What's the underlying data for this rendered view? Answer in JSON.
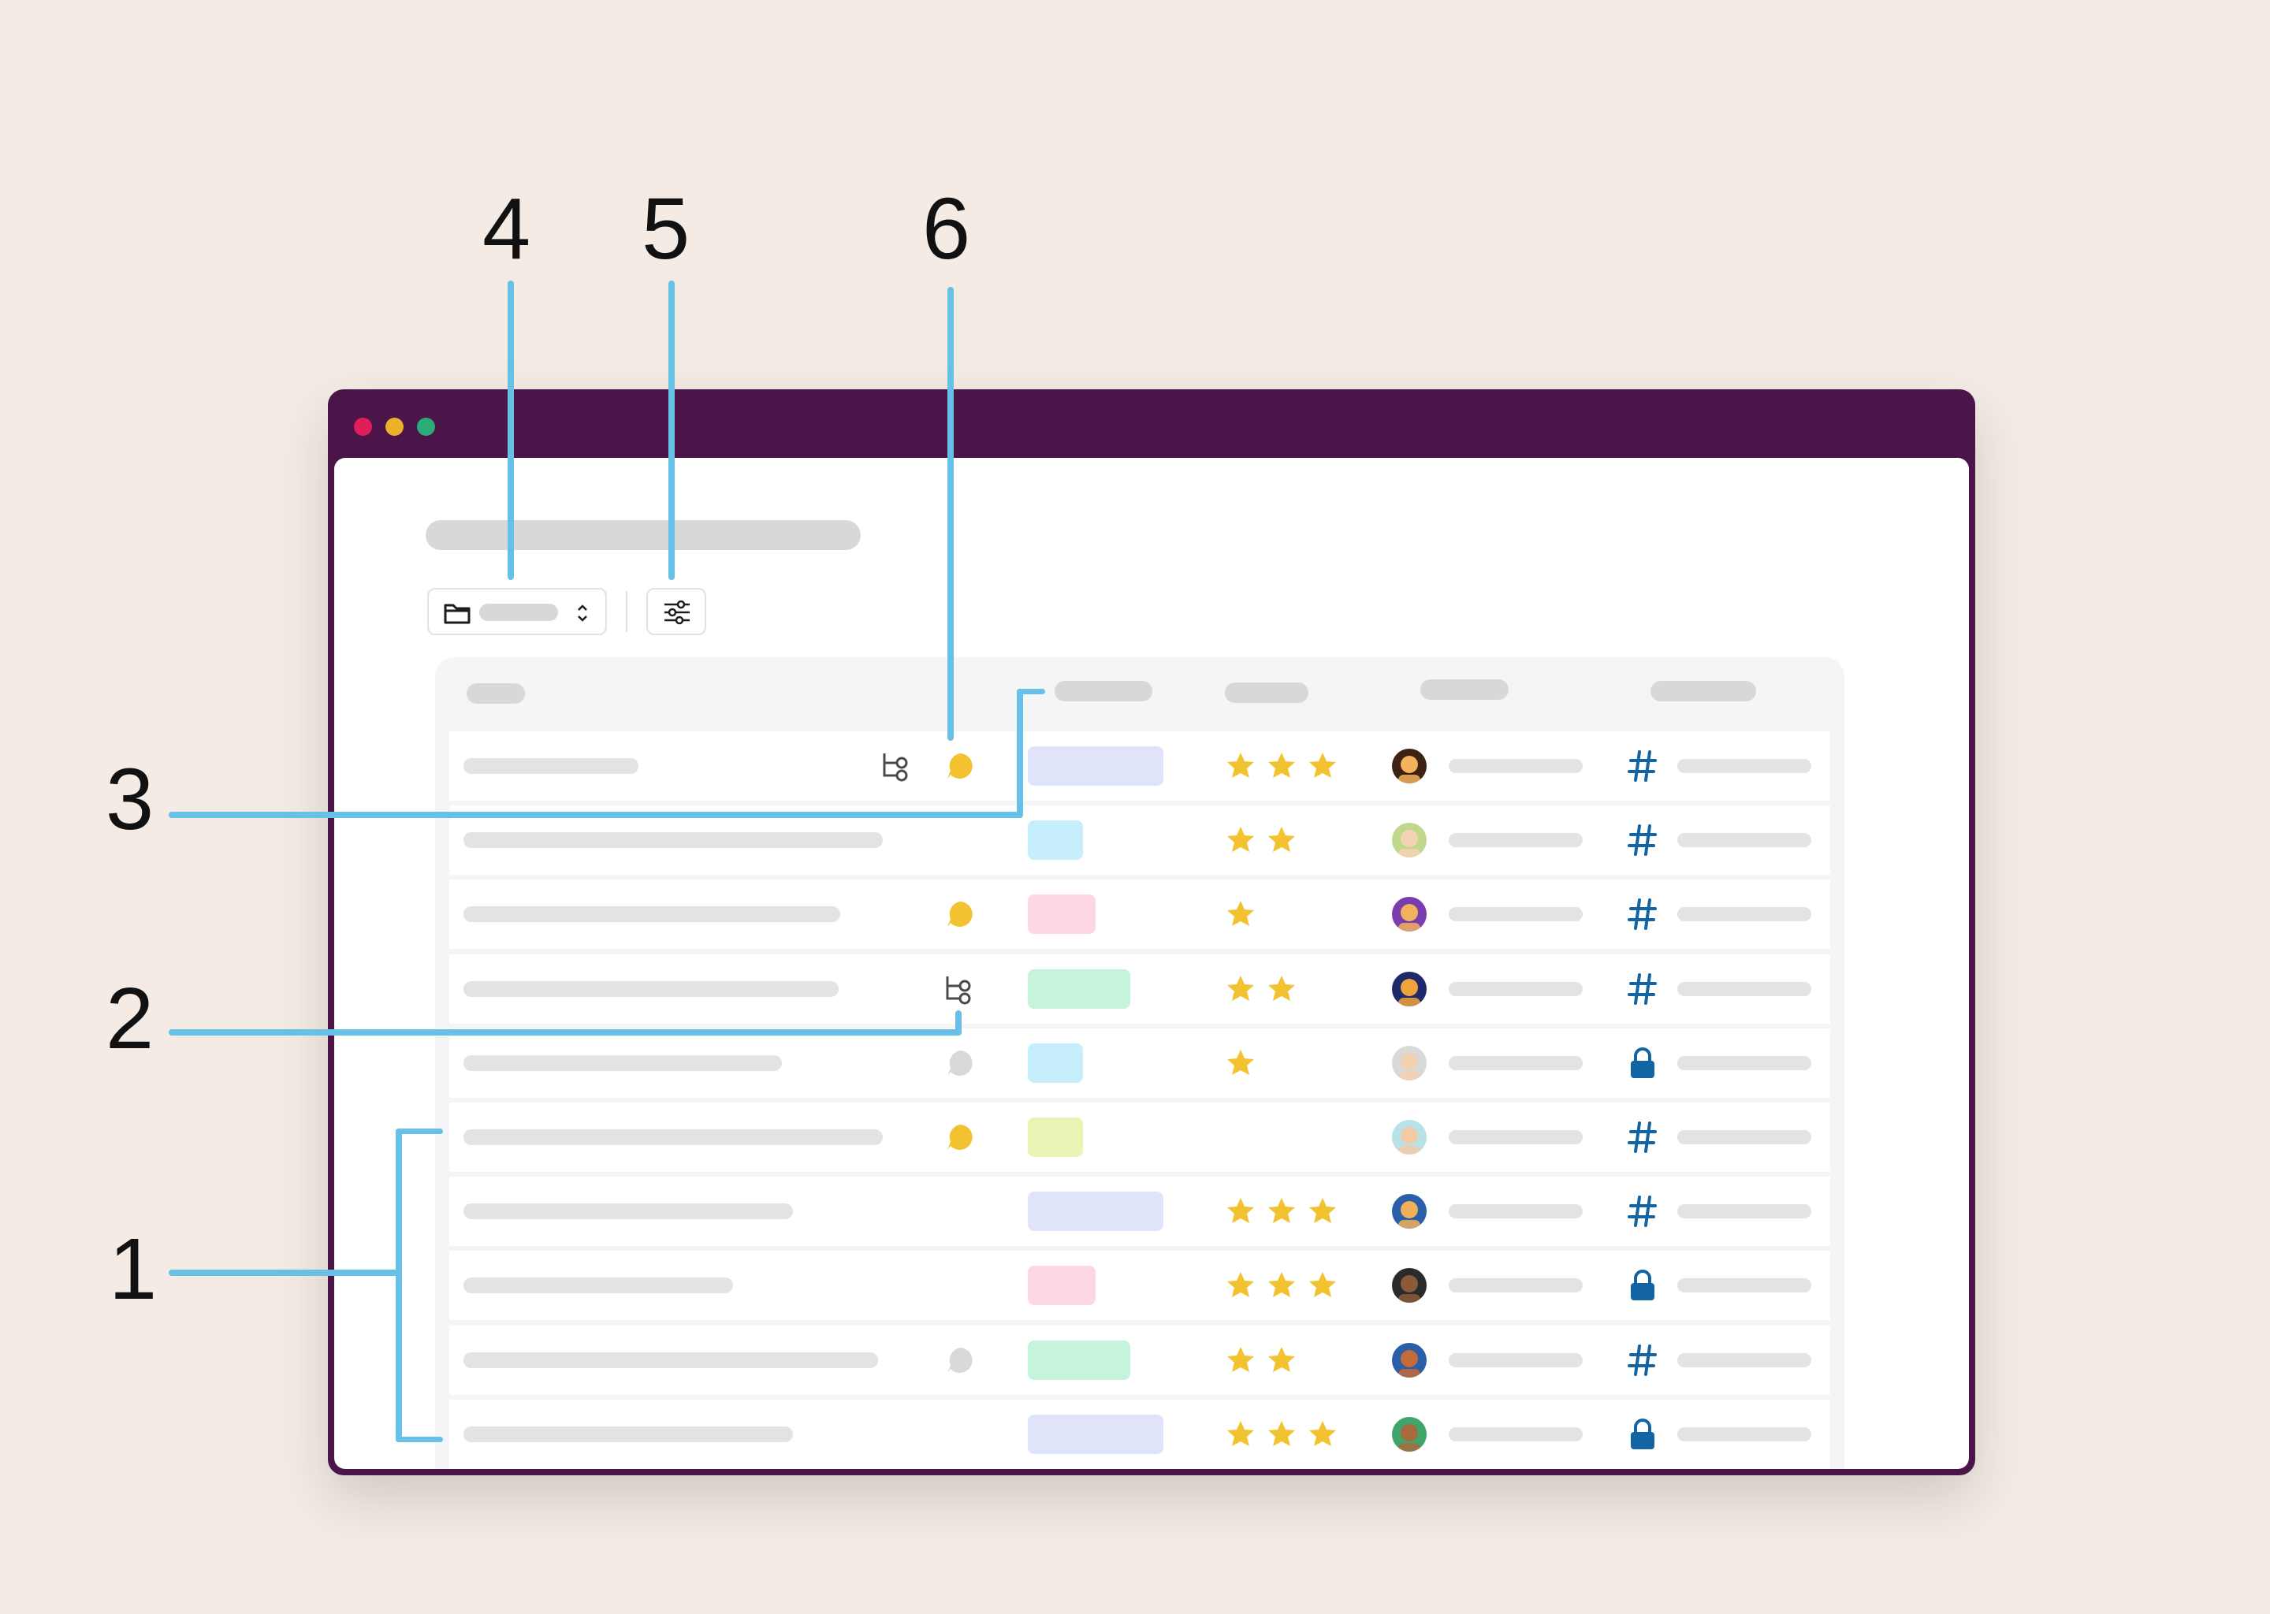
{
  "callouts": [
    {
      "num": "1"
    },
    {
      "num": "2"
    },
    {
      "num": "3"
    },
    {
      "num": "4"
    },
    {
      "num": "5"
    },
    {
      "num": "6"
    }
  ],
  "colors": {
    "background": "#f4ece4",
    "window_frame": "#4b154a",
    "leader": "#67c1e6",
    "star": "#f2c230",
    "hash": "#1264a3",
    "comment_active": "#f2c230",
    "comment_inactive": "#d9d9d9",
    "traffic_red": "#e01e5a",
    "traffic_yellow": "#ecb22e",
    "traffic_green": "#2bac76"
  },
  "toolbar": {
    "folder_icon": "folder-icon",
    "selector_icon": "chevron-up-down-icon",
    "filter_icon": "sliders-icon"
  },
  "rows": [
    {
      "workflow": true,
      "comment": "active",
      "tag_color": "#dfe4fb",
      "tag_size": "wide",
      "stars": 3,
      "avatar": [
        "#3d2314",
        "#f3b25c"
      ],
      "channel": "public"
    },
    {
      "workflow": false,
      "comment": "none",
      "tag_color": "#c7eefc",
      "tag_size": "small",
      "stars": 2,
      "avatar": [
        "#c0d88c",
        "#f6d2b4"
      ],
      "channel": "public"
    },
    {
      "workflow": false,
      "comment": "active",
      "tag_color": "#fdd7e5",
      "tag_size": "medium",
      "stars": 1,
      "avatar": [
        "#7a3db0",
        "#f2b25d"
      ],
      "channel": "public"
    },
    {
      "workflow": true,
      "comment": "none",
      "tag_color": "#c6f3dc",
      "tag_size": "large",
      "stars": 2,
      "avatar": [
        "#1f2a6b",
        "#f0a33a"
      ],
      "channel": "public"
    },
    {
      "workflow": false,
      "comment": "inactive",
      "tag_color": "#c7eefc",
      "tag_size": "small",
      "stars": 1,
      "avatar": [
        "#d9d9d9",
        "#f2d0b0"
      ],
      "channel": "private"
    },
    {
      "workflow": false,
      "comment": "active",
      "tag_color": "#e9f4b5",
      "tag_size": "small",
      "stars": 0,
      "avatar": [
        "#b7e3e8",
        "#f4caa6"
      ],
      "channel": "public"
    },
    {
      "workflow": false,
      "comment": "none",
      "tag_color": "#dfe4fb",
      "tag_size": "wide",
      "stars": 3,
      "avatar": [
        "#2b5ea8",
        "#f0b05a"
      ],
      "channel": "public"
    },
    {
      "workflow": false,
      "comment": "none",
      "tag_color": "#fdd7e5",
      "tag_size": "medium",
      "stars": 3,
      "avatar": [
        "#2a2a2a",
        "#8a5a3b"
      ],
      "channel": "private"
    },
    {
      "workflow": false,
      "comment": "inactive",
      "tag_color": "#c6f3dc",
      "tag_size": "large",
      "stars": 2,
      "avatar": [
        "#2b5ea8",
        "#c56a3a"
      ],
      "channel": "public"
    },
    {
      "workflow": false,
      "comment": "none",
      "tag_color": "#dfe4fb",
      "tag_size": "wide",
      "stars": 3,
      "avatar": [
        "#3fa56a",
        "#a86a3c"
      ],
      "channel": "private"
    }
  ]
}
